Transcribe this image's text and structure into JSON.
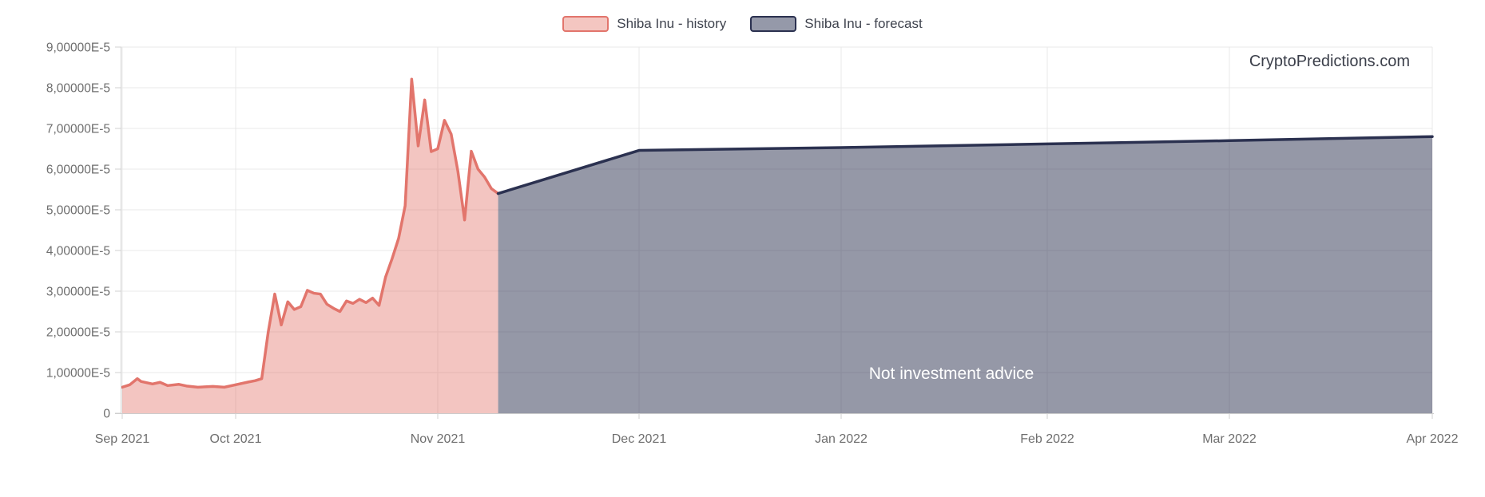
{
  "watermark": "CryptoPredictions.com",
  "overlay_note": "Not investment advice",
  "legend": {
    "position": "top-center",
    "items": [
      {
        "label": "Shiba Inu - history",
        "swatch_fill": "#f4c6c1",
        "swatch_border": "#e2756c"
      },
      {
        "label": "Shiba Inu - forecast",
        "swatch_fill": "#9599a9",
        "swatch_border": "#2b3150"
      }
    ]
  },
  "chart_data": {
    "type": "area",
    "grid": true,
    "legend_position": "top-center",
    "x_axis": {
      "tick_labels": [
        "Sep 2021",
        "Oct 2021",
        "Nov 2021",
        "Dec 2021",
        "Jan 2022",
        "Feb 2022",
        "Mar 2022",
        "Apr 2022"
      ]
    },
    "y_axis": {
      "min": 0,
      "max": 9e-05,
      "tick_labels": [
        "0",
        "1,00000E-5",
        "2,00000E-5",
        "3,00000E-5",
        "4,00000E-5",
        "5,00000E-5",
        "6,00000E-5",
        "7,00000E-5",
        "8,00000E-5",
        "9,00000E-5"
      ]
    },
    "series": [
      {
        "name": "Shiba Inu - history",
        "color": "#e2756c",
        "fill": "rgba(226,117,108,0.42)",
        "points": [
          [
            "2021-09-01",
            6.4e-06
          ],
          [
            "2021-09-03",
            7e-06
          ],
          [
            "2021-09-05",
            8.5e-06
          ],
          [
            "2021-09-06",
            7.8e-06
          ],
          [
            "2021-09-09",
            7.2e-06
          ],
          [
            "2021-09-11",
            7.6e-06
          ],
          [
            "2021-09-13",
            6.8e-06
          ],
          [
            "2021-09-16",
            7.1e-06
          ],
          [
            "2021-09-18",
            6.7e-06
          ],
          [
            "2021-09-21",
            6.4e-06
          ],
          [
            "2021-09-25",
            6.6e-06
          ],
          [
            "2021-09-28",
            6.4e-06
          ],
          [
            "2021-10-01",
            7e-06
          ],
          [
            "2021-10-03",
            7.7e-06
          ],
          [
            "2021-10-04",
            8e-06
          ],
          [
            "2021-10-05",
            8.5e-06
          ],
          [
            "2021-10-06",
            2e-05
          ],
          [
            "2021-10-07",
            2.93e-05
          ],
          [
            "2021-10-08",
            2.17e-05
          ],
          [
            "2021-10-09",
            2.74e-05
          ],
          [
            "2021-10-10",
            2.55e-05
          ],
          [
            "2021-10-11",
            2.62e-05
          ],
          [
            "2021-10-12",
            3.02e-05
          ],
          [
            "2021-10-13",
            2.95e-05
          ],
          [
            "2021-10-14",
            2.93e-05
          ],
          [
            "2021-10-15",
            2.68e-05
          ],
          [
            "2021-10-16",
            2.58e-05
          ],
          [
            "2021-10-17",
            2.5e-05
          ],
          [
            "2021-10-18",
            2.76e-05
          ],
          [
            "2021-10-19",
            2.7e-05
          ],
          [
            "2021-10-20",
            2.8e-05
          ],
          [
            "2021-10-21",
            2.72e-05
          ],
          [
            "2021-10-22",
            2.83e-05
          ],
          [
            "2021-10-23",
            2.65e-05
          ],
          [
            "2021-10-24",
            3.35e-05
          ],
          [
            "2021-10-25",
            3.8e-05
          ],
          [
            "2021-10-26",
            4.3e-05
          ],
          [
            "2021-10-27",
            5.1e-05
          ],
          [
            "2021-10-28",
            8.21e-05
          ],
          [
            "2021-10-29",
            6.57e-05
          ],
          [
            "2021-10-30",
            7.7e-05
          ],
          [
            "2021-10-31",
            6.43e-05
          ],
          [
            "2021-11-01",
            6.5e-05
          ],
          [
            "2021-11-02",
            7.2e-05
          ],
          [
            "2021-11-03",
            6.86e-05
          ],
          [
            "2021-11-04",
            5.95e-05
          ],
          [
            "2021-11-05",
            4.75e-05
          ],
          [
            "2021-11-06",
            6.44e-05
          ],
          [
            "2021-11-07",
            6e-05
          ],
          [
            "2021-11-08",
            5.8e-05
          ],
          [
            "2021-11-09",
            5.52e-05
          ],
          [
            "2021-11-10",
            5.4e-05
          ]
        ]
      },
      {
        "name": "Shiba Inu - forecast",
        "color": "#2b3150",
        "fill": "rgba(43,49,80,0.5)",
        "points": [
          [
            "2021-11-10",
            5.4e-05
          ],
          [
            "2021-12-01",
            6.46e-05
          ],
          [
            "2022-01-01",
            6.53e-05
          ],
          [
            "2022-02-01",
            6.62e-05
          ],
          [
            "2022-03-01",
            6.7e-05
          ],
          [
            "2022-04-01",
            6.8e-05
          ]
        ]
      }
    ]
  }
}
